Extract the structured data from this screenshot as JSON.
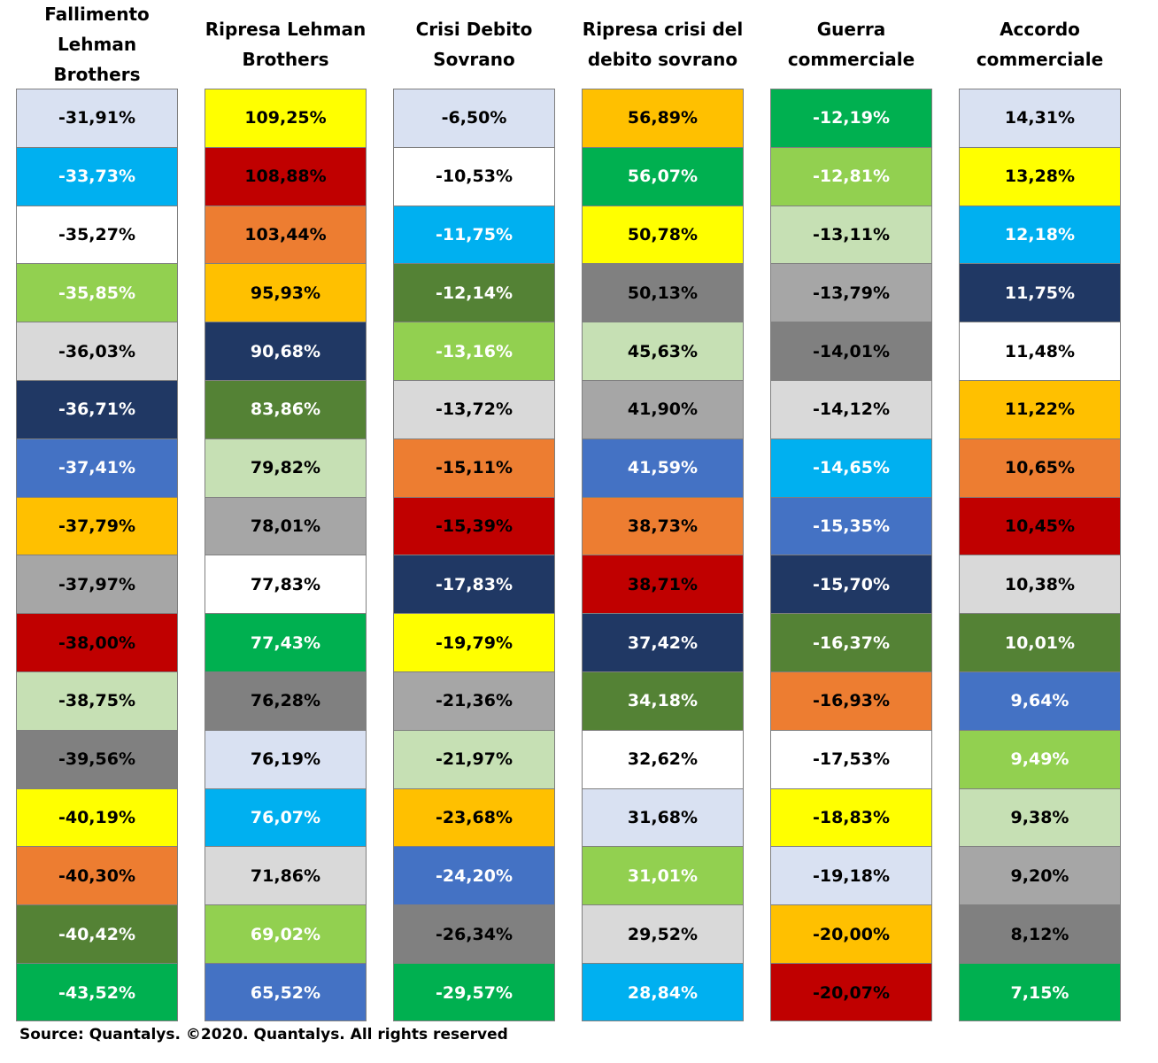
{
  "palette": {
    "lightblue": "#D9E1F2",
    "cyan": "#00B0F0",
    "white": "#FFFFFF",
    "lightgreen": "#92D050",
    "lightgray": "#D9D9D9",
    "navy": "#203864",
    "blue": "#4472C4",
    "amber": "#FFC000",
    "gray": "#A6A6A6",
    "red": "#C00000",
    "palegreen": "#C6E0B4",
    "darkgray": "#808080",
    "yellow": "#FFFF00",
    "orange": "#ED7D31",
    "olive": "#548235",
    "green": "#00B050"
  },
  "text_colors": {
    "lightblue": "#000000",
    "cyan": "#FFFFFF",
    "white": "#000000",
    "lightgreen": "#FFFFFF",
    "lightgray": "#000000",
    "navy": "#FFFFFF",
    "blue": "#FFFFFF",
    "amber": "#000000",
    "gray": "#000000",
    "red": "#000000",
    "palegreen": "#000000",
    "darkgray": "#000000",
    "yellow": "#000000",
    "orange": "#000000",
    "olive": "#FFFFFF",
    "green": "#FFFFFF"
  },
  "chart_data": {
    "type": "table",
    "columns": [
      {
        "title": "Fallimento\nLehman\nBrothers",
        "cells": [
          {
            "value": "-31,91%",
            "color": "lightblue"
          },
          {
            "value": "-33,73%",
            "color": "cyan"
          },
          {
            "value": "-35,27%",
            "color": "white"
          },
          {
            "value": "-35,85%",
            "color": "lightgreen"
          },
          {
            "value": "-36,03%",
            "color": "lightgray"
          },
          {
            "value": "-36,71%",
            "color": "navy"
          },
          {
            "value": "-37,41%",
            "color": "blue"
          },
          {
            "value": "-37,79%",
            "color": "amber"
          },
          {
            "value": "-37,97%",
            "color": "gray"
          },
          {
            "value": "-38,00%",
            "color": "red"
          },
          {
            "value": "-38,75%",
            "color": "palegreen"
          },
          {
            "value": "-39,56%",
            "color": "darkgray"
          },
          {
            "value": "-40,19%",
            "color": "yellow"
          },
          {
            "value": "-40,30%",
            "color": "orange"
          },
          {
            "value": "-40,42%",
            "color": "olive"
          },
          {
            "value": "-43,52%",
            "color": "green"
          }
        ]
      },
      {
        "title": "Ripresa Lehman\nBrothers",
        "cells": [
          {
            "value": "109,25%",
            "color": "yellow"
          },
          {
            "value": "108,88%",
            "color": "red"
          },
          {
            "value": "103,44%",
            "color": "orange"
          },
          {
            "value": "95,93%",
            "color": "amber"
          },
          {
            "value": "90,68%",
            "color": "navy"
          },
          {
            "value": "83,86%",
            "color": "olive"
          },
          {
            "value": "79,82%",
            "color": "palegreen"
          },
          {
            "value": "78,01%",
            "color": "gray"
          },
          {
            "value": "77,83%",
            "color": "white"
          },
          {
            "value": "77,43%",
            "color": "green"
          },
          {
            "value": "76,28%",
            "color": "darkgray"
          },
          {
            "value": "76,19%",
            "color": "lightblue"
          },
          {
            "value": "76,07%",
            "color": "cyan"
          },
          {
            "value": "71,86%",
            "color": "lightgray"
          },
          {
            "value": "69,02%",
            "color": "lightgreen"
          },
          {
            "value": "65,52%",
            "color": "blue"
          }
        ]
      },
      {
        "title": "Crisi Debito\nSovrano",
        "cells": [
          {
            "value": "-6,50%",
            "color": "lightblue"
          },
          {
            "value": "-10,53%",
            "color": "white"
          },
          {
            "value": "-11,75%",
            "color": "cyan"
          },
          {
            "value": "-12,14%",
            "color": "olive"
          },
          {
            "value": "-13,16%",
            "color": "lightgreen"
          },
          {
            "value": "-13,72%",
            "color": "lightgray"
          },
          {
            "value": "-15,11%",
            "color": "orange"
          },
          {
            "value": "-15,39%",
            "color": "red"
          },
          {
            "value": "-17,83%",
            "color": "navy"
          },
          {
            "value": "-19,79%",
            "color": "yellow"
          },
          {
            "value": "-21,36%",
            "color": "gray"
          },
          {
            "value": "-21,97%",
            "color": "palegreen"
          },
          {
            "value": "-23,68%",
            "color": "amber"
          },
          {
            "value": "-24,20%",
            "color": "blue"
          },
          {
            "value": "-26,34%",
            "color": "darkgray"
          },
          {
            "value": "-29,57%",
            "color": "green"
          }
        ]
      },
      {
        "title": "Ripresa crisi del\ndebito sovrano",
        "cells": [
          {
            "value": "56,89%",
            "color": "amber"
          },
          {
            "value": "56,07%",
            "color": "green"
          },
          {
            "value": "50,78%",
            "color": "yellow"
          },
          {
            "value": "50,13%",
            "color": "darkgray"
          },
          {
            "value": "45,63%",
            "color": "palegreen"
          },
          {
            "value": "41,90%",
            "color": "gray"
          },
          {
            "value": "41,59%",
            "color": "blue"
          },
          {
            "value": "38,73%",
            "color": "orange"
          },
          {
            "value": "38,71%",
            "color": "red"
          },
          {
            "value": "37,42%",
            "color": "navy"
          },
          {
            "value": "34,18%",
            "color": "olive"
          },
          {
            "value": "32,62%",
            "color": "white"
          },
          {
            "value": "31,68%",
            "color": "lightblue"
          },
          {
            "value": "31,01%",
            "color": "lightgreen"
          },
          {
            "value": "29,52%",
            "color": "lightgray"
          },
          {
            "value": "28,84%",
            "color": "cyan"
          }
        ]
      },
      {
        "title": "Guerra\ncommerciale",
        "cells": [
          {
            "value": "-12,19%",
            "color": "green"
          },
          {
            "value": "-12,81%",
            "color": "lightgreen"
          },
          {
            "value": "-13,11%",
            "color": "palegreen"
          },
          {
            "value": "-13,79%",
            "color": "gray"
          },
          {
            "value": "-14,01%",
            "color": "darkgray"
          },
          {
            "value": "-14,12%",
            "color": "lightgray"
          },
          {
            "value": "-14,65%",
            "color": "cyan"
          },
          {
            "value": "-15,35%",
            "color": "blue"
          },
          {
            "value": "-15,70%",
            "color": "navy"
          },
          {
            "value": "-16,37%",
            "color": "olive"
          },
          {
            "value": "-16,93%",
            "color": "orange"
          },
          {
            "value": "-17,53%",
            "color": "white"
          },
          {
            "value": "-18,83%",
            "color": "yellow"
          },
          {
            "value": "-19,18%",
            "color": "lightblue"
          },
          {
            "value": "-20,00%",
            "color": "amber"
          },
          {
            "value": "-20,07%",
            "color": "red"
          }
        ]
      },
      {
        "title": "Accordo\ncommerciale",
        "cells": [
          {
            "value": "14,31%",
            "color": "lightblue"
          },
          {
            "value": "13,28%",
            "color": "yellow"
          },
          {
            "value": "12,18%",
            "color": "cyan"
          },
          {
            "value": "11,75%",
            "color": "navy"
          },
          {
            "value": "11,48%",
            "color": "white"
          },
          {
            "value": "11,22%",
            "color": "amber"
          },
          {
            "value": "10,65%",
            "color": "orange"
          },
          {
            "value": "10,45%",
            "color": "red"
          },
          {
            "value": "10,38%",
            "color": "lightgray"
          },
          {
            "value": "10,01%",
            "color": "olive"
          },
          {
            "value": "9,64%",
            "color": "blue"
          },
          {
            "value": "9,49%",
            "color": "lightgreen"
          },
          {
            "value": "9,38%",
            "color": "palegreen"
          },
          {
            "value": "9,20%",
            "color": "gray"
          },
          {
            "value": "8,12%",
            "color": "darkgray"
          },
          {
            "value": "7,15%",
            "color": "green"
          }
        ]
      }
    ]
  },
  "footer": {
    "source": "Source: Quantalys. ©2020. Quantalys. All rights reserved"
  }
}
